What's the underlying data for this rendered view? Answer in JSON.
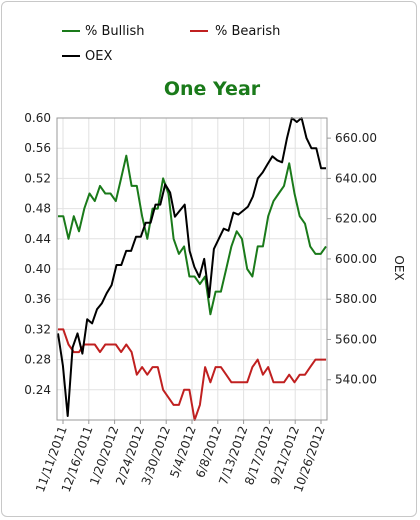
{
  "chart_data": {
    "type": "line",
    "title": "One Year",
    "title_color": "#1a7a1a",
    "xlabel": "",
    "ylabel_left": "",
    "ylabel_right": "OEX",
    "legend_position": "top-left",
    "grid": true,
    "x_tick_labels": [
      "11/11/2011",
      "12/16/2011",
      "1/20/2012",
      "2/24/2012",
      "3/30/2012",
      "5/4/2012",
      "6/8/2012",
      "7/13/2012",
      "8/17/2012",
      "9/21/2012",
      "10/26/2012"
    ],
    "left_axis": {
      "ylim": [
        0.2,
        0.6
      ],
      "ticks": [
        "0.60",
        "0.56",
        "0.52",
        "0.48",
        "0.44",
        "0.40",
        "0.36",
        "0.32",
        "0.28",
        "0.24"
      ]
    },
    "right_axis": {
      "ylim": [
        520,
        670
      ],
      "ticks": [
        "660.00",
        "640.00",
        "620.00",
        "600.00",
        "580.00",
        "560.00",
        "540.00"
      ]
    },
    "series": [
      {
        "name": "% Bullish",
        "color": "#1a7a1a",
        "axis": "left",
        "values": [
          0.47,
          0.47,
          0.44,
          0.47,
          0.45,
          0.48,
          0.5,
          0.49,
          0.51,
          0.5,
          0.5,
          0.49,
          0.52,
          0.55,
          0.51,
          0.51,
          0.47,
          0.44,
          0.48,
          0.48,
          0.52,
          0.5,
          0.44,
          0.42,
          0.43,
          0.39,
          0.39,
          0.38,
          0.39,
          0.34,
          0.37,
          0.37,
          0.4,
          0.43,
          0.45,
          0.44,
          0.4,
          0.39,
          0.43,
          0.43,
          0.47,
          0.49,
          0.5,
          0.51,
          0.54,
          0.5,
          0.47,
          0.46,
          0.43,
          0.42,
          0.42,
          0.43
        ]
      },
      {
        "name": "% Bearish",
        "color": "#c02020",
        "axis": "left",
        "values": [
          0.32,
          0.32,
          0.3,
          0.29,
          0.29,
          0.3,
          0.3,
          0.3,
          0.29,
          0.3,
          0.3,
          0.3,
          0.29,
          0.3,
          0.29,
          0.26,
          0.27,
          0.26,
          0.27,
          0.27,
          0.24,
          0.23,
          0.22,
          0.22,
          0.24,
          0.24,
          0.2,
          0.22,
          0.27,
          0.25,
          0.27,
          0.27,
          0.26,
          0.25,
          0.25,
          0.25,
          0.25,
          0.27,
          0.28,
          0.26,
          0.27,
          0.25,
          0.25,
          0.25,
          0.26,
          0.25,
          0.26,
          0.26,
          0.27,
          0.28,
          0.28,
          0.28
        ]
      },
      {
        "name": "OEX",
        "color": "#000000",
        "axis": "right",
        "values": [
          563,
          547,
          522,
          556,
          563,
          553,
          570,
          568,
          575,
          578,
          583,
          587,
          597,
          597,
          604,
          604,
          611,
          611,
          618,
          618,
          627,
          627,
          637,
          633,
          621,
          624,
          627,
          604,
          596,
          591,
          600,
          581,
          605,
          610,
          615,
          614,
          623,
          622,
          624,
          626,
          631,
          640,
          643,
          647,
          651,
          649,
          648,
          660,
          670,
          668,
          670,
          660,
          655,
          655,
          645,
          645
        ]
      }
    ]
  }
}
